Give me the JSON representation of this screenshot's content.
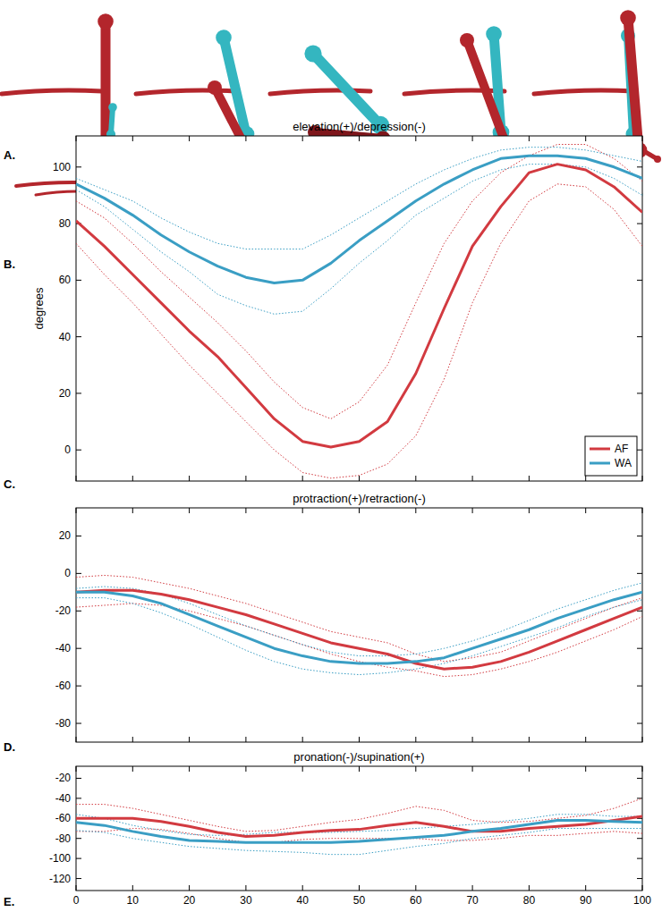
{
  "panel_labels": [
    "A.",
    "B.",
    "C.",
    "D.",
    "E."
  ],
  "chart_data": [
    {
      "type": "line",
      "title": "elevation(+)/depression(-)",
      "ylabel": "degrees",
      "x": [
        0,
        5,
        10,
        15,
        20,
        25,
        30,
        35,
        40,
        45,
        50,
        55,
        60,
        65,
        70,
        75,
        80,
        85,
        90,
        95,
        100
      ],
      "xlim": [
        0,
        100
      ],
      "xticks": [
        0,
        10,
        20,
        30,
        40,
        50,
        60,
        70,
        80,
        90,
        100
      ],
      "ylim": [
        -11,
        111
      ],
      "yticks": [
        0,
        20,
        40,
        60,
        80,
        100
      ],
      "tick_labels": "y",
      "legend": "lower right",
      "series": [
        {
          "name": "AF",
          "color": "#d23a40",
          "values": [
            81,
            72,
            62,
            52,
            42,
            33,
            22,
            11,
            3,
            1,
            3,
            10,
            27,
            50,
            72,
            86,
            98,
            101,
            99,
            93,
            84
          ],
          "upper": [
            88,
            82,
            73,
            63,
            54,
            45,
            35,
            24,
            15,
            11,
            17,
            30,
            52,
            73,
            88,
            98,
            104,
            108,
            108,
            103,
            95
          ],
          "lower": [
            73,
            62,
            52,
            41,
            30,
            20,
            10,
            0,
            -8,
            -10,
            -9,
            -5,
            5,
            25,
            52,
            73,
            88,
            94,
            93,
            85,
            72
          ]
        },
        {
          "name": "WA",
          "color": "#3a9ec4",
          "values": [
            94,
            89,
            83,
            76,
            70,
            65,
            61,
            59,
            60,
            66,
            74,
            81,
            88,
            94,
            99,
            103,
            104,
            104,
            103,
            100,
            96
          ],
          "upper": [
            96,
            92,
            88,
            82,
            77,
            73,
            71,
            71,
            71,
            76,
            82,
            88,
            94,
            99,
            103,
            106,
            107,
            107,
            106,
            104,
            102
          ],
          "lower": [
            92,
            86,
            78,
            70,
            63,
            55,
            51,
            48,
            49,
            57,
            66,
            74,
            83,
            89,
            95,
            99,
            101,
            101,
            100,
            96,
            90
          ]
        }
      ]
    },
    {
      "type": "line",
      "title": "protraction(+)/retraction(-)",
      "x": [
        0,
        5,
        10,
        15,
        20,
        25,
        30,
        35,
        40,
        45,
        50,
        55,
        60,
        65,
        70,
        75,
        80,
        85,
        90,
        95,
        100
      ],
      "xlim": [
        0,
        100
      ],
      "xticks": [
        0,
        10,
        20,
        30,
        40,
        50,
        60,
        70,
        80,
        90,
        100
      ],
      "ylim": [
        -90,
        35
      ],
      "yticks": [
        -80,
        -60,
        -40,
        -20,
        0,
        20
      ],
      "tick_labels": "y",
      "series": [
        {
          "name": "AF",
          "color": "#d23a40",
          "values": [
            -10,
            -9,
            -9,
            -11,
            -14,
            -18,
            -22,
            -27,
            -32,
            -37,
            -40,
            -43,
            -48,
            -51,
            -50,
            -47,
            -42,
            -36,
            -30,
            -24,
            -18
          ],
          "upper": [
            -2,
            -1,
            -2,
            -5,
            -8,
            -12,
            -16,
            -21,
            -26,
            -31,
            -34,
            -37,
            -43,
            -47,
            -45,
            -42,
            -36,
            -30,
            -24,
            -18,
            -13
          ],
          "lower": [
            -18,
            -17,
            -16,
            -17,
            -20,
            -24,
            -28,
            -33,
            -38,
            -43,
            -47,
            -50,
            -52,
            -55,
            -54,
            -51,
            -47,
            -42,
            -36,
            -30,
            -23
          ]
        },
        {
          "name": "WA",
          "color": "#3a9ec4",
          "values": [
            -10,
            -10,
            -12,
            -16,
            -22,
            -28,
            -34,
            -40,
            -44,
            -47,
            -48,
            -48,
            -47,
            -45,
            -40,
            -35,
            -30,
            -24,
            -19,
            -14,
            -10
          ],
          "upper": [
            -8,
            -7,
            -8,
            -11,
            -16,
            -22,
            -28,
            -33,
            -38,
            -42,
            -44,
            -44,
            -43,
            -40,
            -36,
            -31,
            -25,
            -19,
            -14,
            -9,
            -5
          ],
          "lower": [
            -13,
            -13,
            -16,
            -21,
            -27,
            -34,
            -41,
            -47,
            -51,
            -53,
            -54,
            -53,
            -51,
            -48,
            -44,
            -39,
            -34,
            -29,
            -23,
            -18,
            -14
          ]
        }
      ]
    },
    {
      "type": "line",
      "title": "pronation(-)/supination(+)",
      "x": [
        0,
        5,
        10,
        15,
        20,
        25,
        30,
        35,
        40,
        45,
        50,
        55,
        60,
        65,
        70,
        75,
        80,
        85,
        90,
        95,
        100
      ],
      "xlim": [
        0,
        100
      ],
      "xticks": [
        0,
        10,
        20,
        30,
        40,
        50,
        60,
        70,
        80,
        90,
        100
      ],
      "ylim": [
        -132,
        -8
      ],
      "yticks": [
        -120,
        -100,
        -80,
        -60,
        -40,
        -20
      ],
      "series": [
        {
          "name": "AF",
          "color": "#d23a40",
          "values": [
            -60,
            -60,
            -60,
            -63,
            -68,
            -74,
            -78,
            -77,
            -74,
            -72,
            -71,
            -67,
            -64,
            -68,
            -73,
            -73,
            -70,
            -68,
            -66,
            -62,
            -58
          ],
          "upper": [
            -46,
            -46,
            -50,
            -56,
            -62,
            -68,
            -73,
            -72,
            -68,
            -64,
            -61,
            -55,
            -48,
            -52,
            -62,
            -64,
            -63,
            -60,
            -57,
            -50,
            -40
          ],
          "lower": [
            -73,
            -73,
            -70,
            -71,
            -75,
            -80,
            -84,
            -84,
            -81,
            -80,
            -80,
            -80,
            -80,
            -82,
            -82,
            -80,
            -77,
            -77,
            -75,
            -73,
            -75
          ]
        },
        {
          "name": "WA",
          "color": "#3a9ec4",
          "values": [
            -64,
            -67,
            -73,
            -78,
            -82,
            -83,
            -84,
            -84,
            -84,
            -84,
            -83,
            -81,
            -79,
            -77,
            -73,
            -70,
            -66,
            -62,
            -62,
            -63,
            -64
          ],
          "upper": [
            -56,
            -60,
            -67,
            -72,
            -76,
            -77,
            -76,
            -74,
            -74,
            -74,
            -73,
            -72,
            -70,
            -68,
            -66,
            -63,
            -60,
            -56,
            -56,
            -58,
            -58
          ],
          "lower": [
            -72,
            -74,
            -80,
            -84,
            -88,
            -90,
            -92,
            -93,
            -94,
            -96,
            -96,
            -92,
            -88,
            -85,
            -80,
            -77,
            -74,
            -70,
            -70,
            -70,
            -70
          ]
        }
      ]
    }
  ]
}
